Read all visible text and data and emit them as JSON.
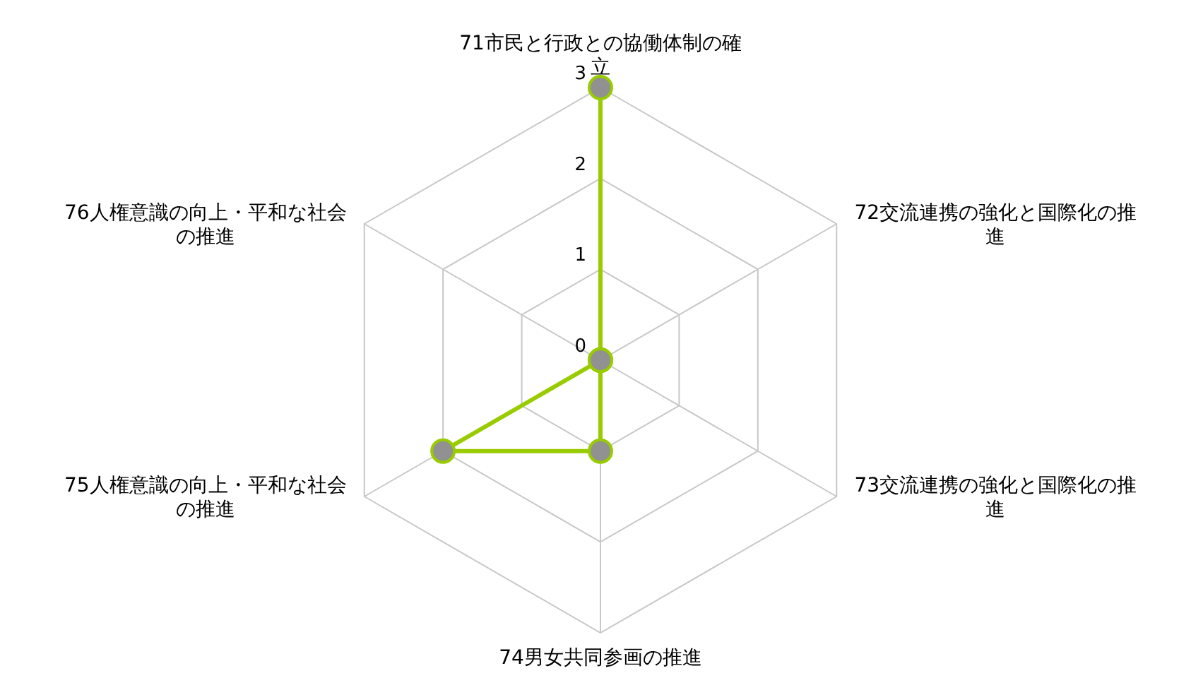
{
  "chart_data": {
    "type": "radar",
    "categories": [
      "71市民と行政との協働体制の確立",
      "72交流連携の強化と国際化の推進",
      "73交流連携の強化と国際化の推進",
      "74男女共同参画の推進",
      "75人権意識の向上・平和な社会の推進",
      "76人権意識の向上・平和な社会の推進"
    ],
    "series": [
      {
        "color": "#99cc00",
        "values": [
          3,
          0,
          0,
          1,
          2,
          0
        ]
      }
    ],
    "ylim": [
      0,
      3
    ],
    "yticks": [
      0,
      1,
      2,
      3
    ],
    "marker": "circle",
    "line_style": "solid",
    "grid": true
  }
}
